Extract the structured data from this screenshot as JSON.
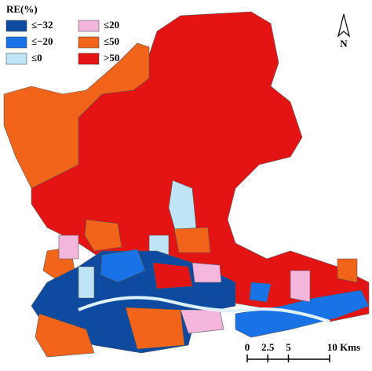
{
  "legend": {
    "title": "RE(%)",
    "items": [
      {
        "label": "≤−32",
        "color": "#0d4aa0"
      },
      {
        "label": "≤−20",
        "color": "#1a73e6"
      },
      {
        "label": "≤0",
        "color": "#bfe4f5"
      },
      {
        "label": "≤20",
        "color": "#f4b6dc"
      },
      {
        "label": "≤50",
        "color": "#f26419"
      },
      {
        "label": ">50",
        "color": "#e41414"
      }
    ]
  },
  "north": "N",
  "scale_bar": {
    "ticks": [
      0,
      2.5,
      5,
      {
        "value": 10,
        "label": "10 Kms"
      }
    ]
  }
}
